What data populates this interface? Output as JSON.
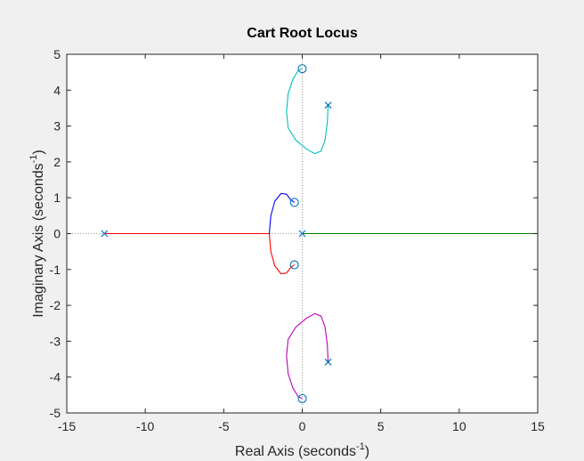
{
  "chart_data": {
    "type": "line",
    "title": "Cart Root Locus",
    "xlabel_main": "Real Axis (seconds",
    "xlabel_sup": "-1",
    "xlabel_end": ")",
    "ylabel_main": "Imaginary Axis (seconds",
    "ylabel_sup": "-1",
    "ylabel_end": ")",
    "xlim": [
      -15,
      15
    ],
    "ylim": [
      -5,
      5
    ],
    "xticks": [
      -15,
      -10,
      -5,
      0,
      5,
      10,
      15
    ],
    "yticks": [
      -5,
      -4,
      -3,
      -2,
      -1,
      0,
      1,
      2,
      3,
      4,
      5
    ],
    "xtick_labels": [
      "-15",
      "-10",
      "-5",
      "0",
      "5",
      "10",
      "15"
    ],
    "ytick_labels": [
      "-5",
      "-4",
      "-3",
      "-2",
      "-1",
      "0",
      "1",
      "2",
      "3",
      "4",
      "5"
    ],
    "grid": false,
    "colors": {
      "cyan": "#00bfbf",
      "magenta": "#bf00bf",
      "blue": "#0000ff",
      "red": "#ff0000",
      "green": "#008000",
      "marker": "#0072bd",
      "axis": "#262626",
      "dotted": "#999999"
    },
    "poles": [
      {
        "x": -12.6,
        "y": 0
      },
      {
        "x": 0,
        "y": 0
      },
      {
        "x": 1.65,
        "y": 3.58
      },
      {
        "x": 1.65,
        "y": -3.58
      }
    ],
    "zeros": [
      {
        "x": 0,
        "y": 4.6
      },
      {
        "x": 0,
        "y": -4.6
      },
      {
        "x": -0.5,
        "y": 0.87
      },
      {
        "x": -0.5,
        "y": -0.87
      }
    ],
    "series": [
      {
        "color": "cyan",
        "points": [
          [
            1.65,
            3.58
          ],
          [
            1.6,
            3.1
          ],
          [
            1.45,
            2.6
          ],
          [
            1.2,
            2.3
          ],
          [
            0.8,
            2.23
          ],
          [
            0.3,
            2.35
          ],
          [
            -0.4,
            2.6
          ],
          [
            -0.9,
            2.95
          ],
          [
            -1.0,
            3.4
          ],
          [
            -0.9,
            3.9
          ],
          [
            -0.6,
            4.3
          ],
          [
            -0.25,
            4.55
          ],
          [
            0,
            4.6
          ]
        ]
      },
      {
        "color": "magenta",
        "points": [
          [
            1.65,
            -3.58
          ],
          [
            1.6,
            -3.1
          ],
          [
            1.45,
            -2.6
          ],
          [
            1.2,
            -2.3
          ],
          [
            0.8,
            -2.23
          ],
          [
            0.3,
            -2.35
          ],
          [
            -0.4,
            -2.6
          ],
          [
            -0.9,
            -2.95
          ],
          [
            -1.0,
            -3.4
          ],
          [
            -0.9,
            -3.9
          ],
          [
            -0.6,
            -4.3
          ],
          [
            -0.25,
            -4.55
          ],
          [
            0,
            -4.6
          ]
        ]
      },
      {
        "color": "blue",
        "points": [
          [
            -2.1,
            0
          ],
          [
            -2.0,
            0.5
          ],
          [
            -1.75,
            0.9
          ],
          [
            -1.35,
            1.12
          ],
          [
            -1.0,
            1.1
          ],
          [
            -0.75,
            0.95
          ],
          [
            -0.5,
            0.87
          ]
        ]
      },
      {
        "color": "red",
        "points": [
          [
            -12.6,
            0
          ],
          [
            -2.1,
            0
          ],
          [
            -2.0,
            -0.5
          ],
          [
            -1.75,
            -0.9
          ],
          [
            -1.35,
            -1.12
          ],
          [
            -1.0,
            -1.1
          ],
          [
            -0.75,
            -0.95
          ],
          [
            -0.5,
            -0.87
          ]
        ]
      },
      {
        "color": "green",
        "points": [
          [
            0,
            0
          ],
          [
            15,
            0
          ]
        ]
      }
    ]
  }
}
